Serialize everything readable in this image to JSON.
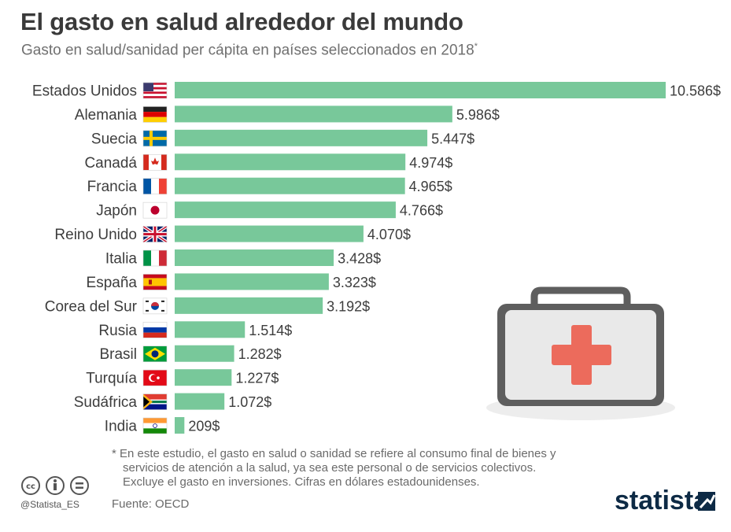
{
  "header": {
    "title": "El gasto en salud alrededor del mundo",
    "subtitle": "Gasto en salud/sanidad per cápita en países seleccionados en 2018",
    "subtitle_mark": "*"
  },
  "chart_data": {
    "type": "bar",
    "orientation": "horizontal",
    "categories": [
      "Estados Unidos",
      "Alemania",
      "Suecia",
      "Canadá",
      "Francia",
      "Japón",
      "Reino Unido",
      "Italia",
      "España",
      "Corea del Sur",
      "Rusia",
      "Brasil",
      "Turquía",
      "Sudáfrica",
      "India"
    ],
    "values": [
      10586,
      5986,
      5447,
      4974,
      4965,
      4766,
      4070,
      3428,
      3323,
      3192,
      1514,
      1282,
      1227,
      1072,
      209
    ],
    "value_labels": [
      "10.586$",
      "5.986$",
      "5.447$",
      "4.974$",
      "4.965$",
      "4.766$",
      "4.070$",
      "3.428$",
      "3.323$",
      "3.192$",
      "1.514$",
      "1.282$",
      "1.227$",
      "1.072$",
      "209$"
    ],
    "flags": [
      "us-flag",
      "de-flag",
      "se-flag",
      "ca-flag",
      "fr-flag",
      "jp-flag",
      "gb-flag",
      "it-flag",
      "es-flag",
      "kr-flag",
      "ru-flag",
      "br-flag",
      "tr-flag",
      "za-flag",
      "in-flag"
    ],
    "bar_color": "#78c89a",
    "grid": false
  },
  "footer": {
    "note_lines": [
      "* En este estudio, el gasto en salud o sanidad se refiere al consumo final de bienes y",
      "servicios de atención a la salud, ya sea este personal o de servicios colectivos.",
      "Excluye el gasto en inversiones. Cifras en dólares estadounidenses."
    ],
    "source": "Fuente: OECD",
    "handle": "@Statista_ES",
    "brand": "statista"
  },
  "colors": {
    "accent_cross": "#ec6b5c",
    "kit_body": "#e7e7e7",
    "brand_dark": "#0d2a45"
  }
}
